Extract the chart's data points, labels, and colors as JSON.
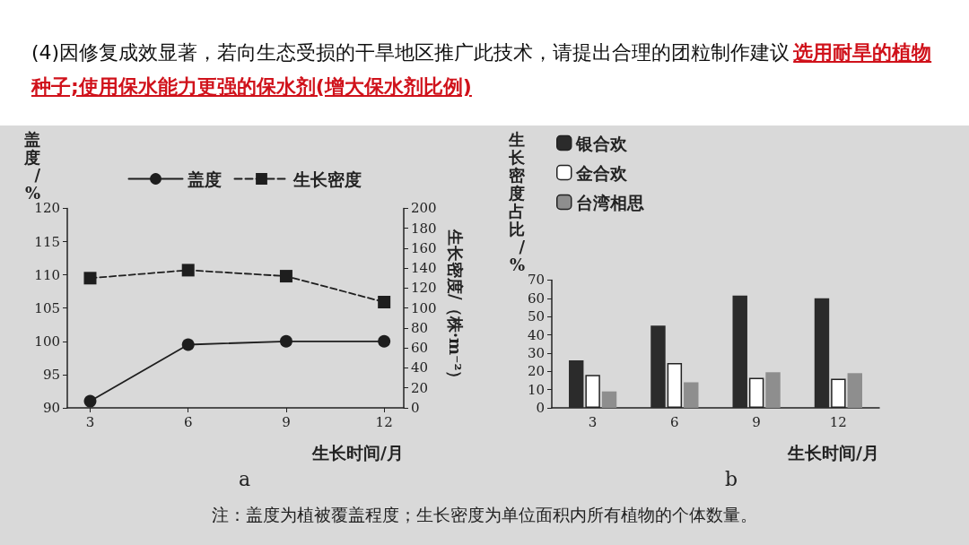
{
  "chart_data": [
    {
      "type": "line",
      "title": "(4)因修复成效显著，若向生态受损的干旱地区推广此技术，请提出合理的团粒制作建议",
      "subtitle": "选用耐旱的植物种子;使用保水能力更强的保水剂(增大保水剂比例)",
      "xlabel": "生长时间/月",
      "ylabel": "盖度/%",
      "y2label": "生长密度/（株·m⁻²）",
      "annotations": [
        "a",
        "注：盖度为植被覆盖程度；生长密度为单位面积内所有植物的个体数量。"
      ],
      "x": [
        3,
        6,
        9,
        12
      ],
      "xlim": [
        2.3,
        12.6
      ],
      "xticks": [
        3,
        6,
        9,
        12
      ],
      "ylim": [
        90,
        120
      ],
      "yticks": [
        90,
        95,
        100,
        105,
        110,
        115,
        120
      ],
      "y2lim": [
        0,
        200
      ],
      "y2ticks": [
        0,
        20,
        40,
        60,
        80,
        100,
        120,
        140,
        160,
        180,
        200
      ],
      "series": [
        {
          "name": "盖度",
          "color": "#1e1e1e",
          "marker": "circle",
          "line_style": "solid",
          "values": [
            91,
            99.5,
            100,
            100
          ]
        },
        {
          "name": "生长密度",
          "color": "#1e1e1e",
          "marker": "square",
          "line_style": "dashed",
          "axis": "y2",
          "values": [
            130,
            138,
            132,
            106
          ]
        }
      ],
      "grid": false,
      "legend": "top"
    },
    {
      "type": "bar",
      "xlabel": "生长时间/月",
      "ylabel": "生长密度占比/%",
      "annotations": [
        "b"
      ],
      "categories": [
        "3",
        "6",
        "9",
        "12"
      ],
      "ylim": [
        0,
        70
      ],
      "yticks": [
        0,
        10,
        20,
        30,
        40,
        50,
        60,
        70
      ],
      "series": [
        {
          "name": "银合欢",
          "color": "#2b2b2b",
          "values": [
            26,
            45,
            61.5,
            60
          ]
        },
        {
          "name": "金合欢",
          "color": "#ffffff",
          "values": [
            18,
            24.5,
            16.5,
            16
          ]
        },
        {
          "name": "台湾相思",
          "color": "#8e8e8e",
          "values": [
            9,
            14,
            19.5,
            19
          ]
        }
      ],
      "grid": false,
      "legend": "top left"
    }
  ]
}
